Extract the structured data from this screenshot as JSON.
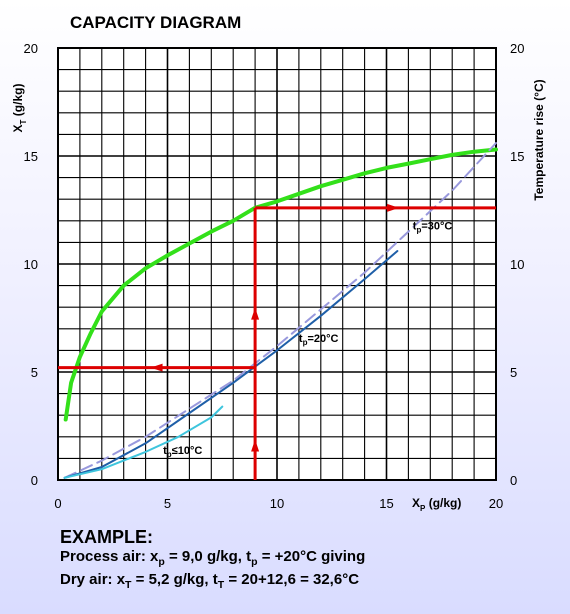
{
  "chart_data": {
    "type": "line",
    "title": "CAPACITY DIAGRAM",
    "xlabel": {
      "main": "X",
      "sub": "P",
      "unit": " (g/kg)"
    },
    "ylabel_left": {
      "main": "X",
      "sub": "T",
      "unit": " (g/kg)"
    },
    "ylabel_right": "Temperature rise (°C)",
    "xlim": [
      0,
      20
    ],
    "ylim": [
      0,
      20
    ],
    "x_ticks": [
      0,
      5,
      10,
      15,
      20
    ],
    "y_ticks": [
      0,
      5,
      10,
      15,
      20
    ],
    "grid": true,
    "minor_grid_step": 1,
    "major_grid_step": 5,
    "series": [
      {
        "color": "#33e01a",
        "points": [
          [
            0.35,
            2.8
          ],
          [
            0.6,
            4.5
          ],
          [
            1.0,
            5.7
          ],
          [
            1.5,
            6.8
          ],
          [
            2.0,
            7.8
          ],
          [
            3.0,
            9.0
          ],
          [
            4.0,
            9.8
          ],
          [
            5.0,
            10.4
          ],
          [
            6.0,
            10.95
          ],
          [
            7.0,
            11.5
          ],
          [
            8.0,
            12.0
          ],
          [
            9.0,
            12.6
          ],
          [
            10.0,
            12.9
          ],
          [
            11.0,
            13.25
          ],
          [
            12.0,
            13.6
          ],
          [
            13.0,
            13.9
          ],
          [
            14.0,
            14.2
          ],
          [
            15.0,
            14.45
          ],
          [
            16.0,
            14.65
          ],
          [
            17.0,
            14.85
          ],
          [
            18.0,
            15.05
          ],
          [
            19.0,
            15.2
          ],
          [
            20.0,
            15.3
          ]
        ]
      },
      {
        "color": "#9999dd",
        "dashed": true,
        "points": [
          [
            0.3,
            0.1
          ],
          [
            2.0,
            0.9
          ],
          [
            4.0,
            2.0
          ],
          [
            6.0,
            3.3
          ],
          [
            8.0,
            4.6
          ],
          [
            10.0,
            6.2
          ],
          [
            12.0,
            7.9
          ],
          [
            14.0,
            9.6
          ],
          [
            16.0,
            11.5
          ],
          [
            18.0,
            13.4
          ],
          [
            20.0,
            15.6
          ]
        ]
      },
      {
        "color": "#1f5fa8",
        "points": [
          [
            0.3,
            0.1
          ],
          [
            2.0,
            0.6
          ],
          [
            4.0,
            1.7
          ],
          [
            6.0,
            3.1
          ],
          [
            8.0,
            4.5
          ],
          [
            10.0,
            6.0
          ],
          [
            12.0,
            7.6
          ],
          [
            14.0,
            9.3
          ],
          [
            15.5,
            10.6
          ]
        ]
      },
      {
        "color": "#3ec5dd",
        "points": [
          [
            0.3,
            0.1
          ],
          [
            2.0,
            0.5
          ],
          [
            4.0,
            1.3
          ],
          [
            5.5,
            2.0
          ],
          [
            7.0,
            2.9
          ],
          [
            7.5,
            3.4
          ]
        ]
      }
    ],
    "annotations": [
      {
        "main": "t",
        "sub": "p",
        "rest": "=30°C",
        "x": 16.2,
        "y": 11.6
      },
      {
        "main": "t",
        "sub": "p",
        "rest": "=20°C",
        "x": 11.0,
        "y": 6.4
      },
      {
        "main": "t",
        "sub": "p",
        "rest": "≤10°C",
        "x": 4.8,
        "y": 1.2
      }
    ],
    "example_lines": {
      "color": "#dd0000",
      "vertical_x": 9.0,
      "vertical_y_top": 12.6,
      "horizontal_left_y": 5.2,
      "horizontal_right_y": 12.6
    }
  },
  "example": {
    "title": "EXAMPLE:",
    "line1": "Process air: x",
    "line1_sub": "p",
    "line1_rest": " = 9,0 g/kg, t",
    "line1_sub2": "p",
    "line1_end": " = +20°C giving",
    "line2": "Dry air: x",
    "line2_sub": "T",
    "line2_rest": " = 5,2 g/kg, t",
    "line2_sub2": "T",
    "line2_end": " = 20+12,6 = 32,6°C"
  }
}
